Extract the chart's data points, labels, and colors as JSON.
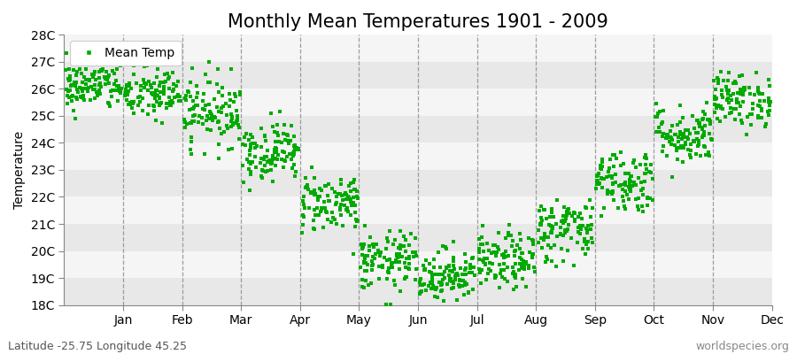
{
  "title": "Monthly Mean Temperatures 1901 - 2009",
  "ylabel": "Temperature",
  "xlabel": "",
  "ylim": [
    18,
    28
  ],
  "yticks": [
    18,
    19,
    20,
    21,
    22,
    23,
    24,
    25,
    26,
    27,
    28
  ],
  "ytick_labels": [
    "18C",
    "19C",
    "20C",
    "21C",
    "22C",
    "23C",
    "24C",
    "25C",
    "26C",
    "27C",
    "28C"
  ],
  "months": [
    "Jan",
    "Feb",
    "Mar",
    "Apr",
    "May",
    "Jun",
    "Jul",
    "Aug",
    "Sep",
    "Oct",
    "Nov",
    "Dec"
  ],
  "month_means": [
    26.1,
    25.8,
    25.2,
    23.7,
    21.8,
    19.6,
    19.1,
    19.6,
    20.8,
    22.6,
    24.3,
    25.6
  ],
  "month_std": [
    0.45,
    0.5,
    0.65,
    0.55,
    0.55,
    0.55,
    0.5,
    0.52,
    0.6,
    0.6,
    0.55,
    0.5
  ],
  "n_years": 109,
  "dot_color": "#00aa00",
  "dot_size": 5,
  "background_color": "#ffffff",
  "band_color_light": "#e8e8e8",
  "band_color_white": "#f5f5f5",
  "vline_color": "#888888",
  "legend_label": "Mean Temp",
  "bottom_left_text": "Latitude -25.75 Longitude 45.25",
  "bottom_right_text": "worldspecies.org",
  "title_fontsize": 15,
  "axis_fontsize": 10,
  "tick_fontsize": 10,
  "annotation_fontsize": 9
}
